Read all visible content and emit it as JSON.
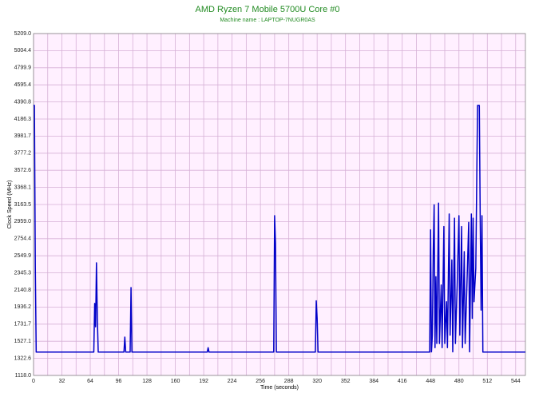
{
  "chart_data": {
    "type": "line",
    "title": "AMD Ryzen 7 Mobile 5700U Core #0",
    "subtitle": "Machine name : LAPTOP-7NUGR0AS",
    "x_label": "Time (seconds)",
    "y_label": "Clock Speed (MHz)",
    "x": [
      0,
      1,
      2,
      3,
      68,
      69,
      70,
      71,
      72,
      73,
      102,
      103,
      104,
      109,
      110,
      111,
      196,
      197,
      198,
      271,
      272,
      273,
      274,
      318,
      319,
      320,
      321,
      447,
      448,
      449,
      450,
      451,
      452,
      453,
      454,
      455,
      457,
      458,
      460,
      461,
      463,
      464,
      466,
      467,
      469,
      470,
      472,
      473,
      475,
      476,
      478,
      480,
      481,
      483,
      484,
      486,
      487,
      489,
      491,
      492,
      494,
      495,
      496,
      497,
      499,
      501,
      503,
      504,
      505,
      506,
      507,
      555
    ],
    "series": [
      {
        "color": "#0000c8",
        "values": [
          4349,
          4349,
          2420,
          1397,
          1397,
          1980,
          1700,
          2466,
          1800,
          1397,
          1397,
          1577,
          1397,
          1397,
          2170,
          1397,
          1397,
          1450,
          1397,
          1397,
          3030,
          2700,
          1397,
          1397,
          2010,
          1800,
          1397,
          1397,
          2860,
          1400,
          1600,
          2600,
          3160,
          1450,
          2300,
          1500,
          3180,
          1500,
          2200,
          1450,
          2900,
          1500,
          2000,
          1450,
          3050,
          1600,
          2500,
          1400,
          3000,
          1500,
          2200,
          3030,
          1600,
          2900,
          1450,
          2600,
          1500,
          2200,
          2950,
          1400,
          3050,
          1800,
          3000,
          2000,
          2400,
          4349,
          4349,
          3000,
          1900,
          3030,
          1397,
          1397
        ]
      }
    ],
    "xlim": [
      0,
      555
    ],
    "xticks": [
      0,
      32,
      64,
      96,
      128,
      160,
      192,
      224,
      256,
      288,
      320,
      352,
      384,
      416,
      448,
      480,
      512,
      544
    ],
    "ylim": [
      1118,
      5209
    ],
    "yticks": [
      {
        "value": 1118,
        "label": "1118.0"
      },
      1322.6,
      1527.1,
      1731.7,
      1936.2,
      2140.8,
      2345.3,
      2549.9,
      2754.4,
      {
        "value": 2959,
        "label": "2959.0"
      },
      3163.5,
      3368.1,
      3572.6,
      3777.2,
      3981.7,
      4186.3,
      4390.8,
      4595.4,
      4799.9,
      5004.4,
      {
        "value": 5209,
        "label": "5209.0"
      }
    ],
    "grid": true,
    "background": "#fff0ff",
    "grid_color": "#d6b0d6",
    "title_color": "#228b22"
  }
}
